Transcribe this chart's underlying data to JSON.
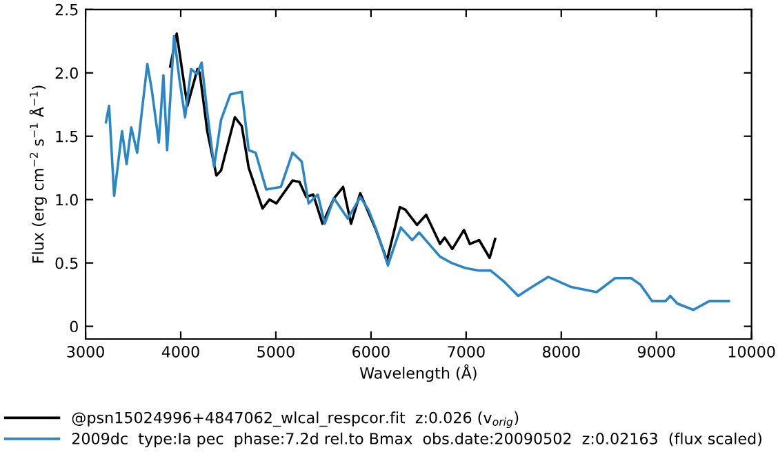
{
  "chart_data": {
    "type": "line",
    "xlabel": "Wavelength (Å)",
    "ylabel": "Flux (erg cm$^{−2}$ s$^{−1}$ Å$^{−1}$)",
    "xlim": [
      3000,
      10000
    ],
    "ylim": [
      -0.1,
      2.5
    ],
    "xticks": [
      3000,
      4000,
      5000,
      6000,
      7000,
      8000,
      9000,
      10000
    ],
    "yticks": [
      0,
      {
        "value": 0.5,
        "label": "0.5"
      },
      {
        "value": 1,
        "label": "1.0"
      },
      {
        "value": 1.5,
        "label": "1.5"
      },
      {
        "value": 2,
        "label": "2.0"
      },
      {
        "value": 2.5,
        "label": "2.5"
      }
    ],
    "grid": false,
    "legend": "bottom",
    "line_style": "solid",
    "marker": "none",
    "series": [
      {
        "name": "@psn15024996+4847062_wlcal_respcor.fit  z:0.026 (v$_{orig}$)",
        "color": "#000000",
        "x": [
          3890,
          3958,
          4070,
          4176,
          4200,
          4279,
          4375,
          4424,
          4569,
          4642,
          4715,
          4860,
          4933,
          5005,
          5175,
          5248,
          5320,
          5393,
          5490,
          5611,
          5707,
          5790,
          5887,
          6047,
          6168,
          6303,
          6361,
          6483,
          6580,
          6725,
          6774,
          6855,
          6977,
          7039,
          7137,
          7247,
          7305
        ],
        "values": [
          2.05,
          2.31,
          1.74,
          2.03,
          2.0,
          1.54,
          1.19,
          1.23,
          1.65,
          1.58,
          1.25,
          0.93,
          1.0,
          0.97,
          1.15,
          1.14,
          1.02,
          1.04,
          0.81,
          1.01,
          1.1,
          0.81,
          1.05,
          0.77,
          0.52,
          0.94,
          0.92,
          0.8,
          0.88,
          0.65,
          0.7,
          0.61,
          0.76,
          0.65,
          0.68,
          0.54,
          0.69
        ]
      },
      {
        "name": "2009dc  type:Ia pec  phase:7.2d rel.to Bmax  obs.date:20090502  z:0.02163  (flux scaled)",
        "color": "#2b86c8",
        "x": [
          3214,
          3247,
          3300,
          3383,
          3431,
          3480,
          3542,
          3649,
          3697,
          3770,
          3818,
          3857,
          3930,
          3988,
          4046,
          4109,
          4172,
          4220,
          4279,
          4351,
          4424,
          4521,
          4642,
          4715,
          4787,
          4899,
          5053,
          5175,
          5272,
          5344,
          5441,
          5514,
          5611,
          5756,
          5887,
          5974,
          6071,
          6178,
          6240,
          6313,
          6433,
          6506,
          6725,
          6846,
          6991,
          7137,
          7257,
          7402,
          7548,
          7669,
          7863,
          8105,
          8372,
          8565,
          8735,
          8831,
          8953,
          9098,
          9146,
          9219,
          9389,
          9558,
          9761
        ],
        "values": [
          1.61,
          1.74,
          1.03,
          1.54,
          1.28,
          1.57,
          1.37,
          2.07,
          1.86,
          1.45,
          1.98,
          1.39,
          2.29,
          1.94,
          1.65,
          2.03,
          1.99,
          2.08,
          1.69,
          1.26,
          1.63,
          1.83,
          1.85,
          1.39,
          1.37,
          1.08,
          1.1,
          1.37,
          1.3,
          0.97,
          1.04,
          0.81,
          1.01,
          0.85,
          1.02,
          0.92,
          0.73,
          0.48,
          0.62,
          0.78,
          0.68,
          0.74,
          0.55,
          0.5,
          0.46,
          0.44,
          0.44,
          0.35,
          0.24,
          0.3,
          0.39,
          0.31,
          0.27,
          0.38,
          0.38,
          0.33,
          0.2,
          0.2,
          0.24,
          0.18,
          0.13,
          0.2,
          0.2
        ]
      }
    ]
  }
}
